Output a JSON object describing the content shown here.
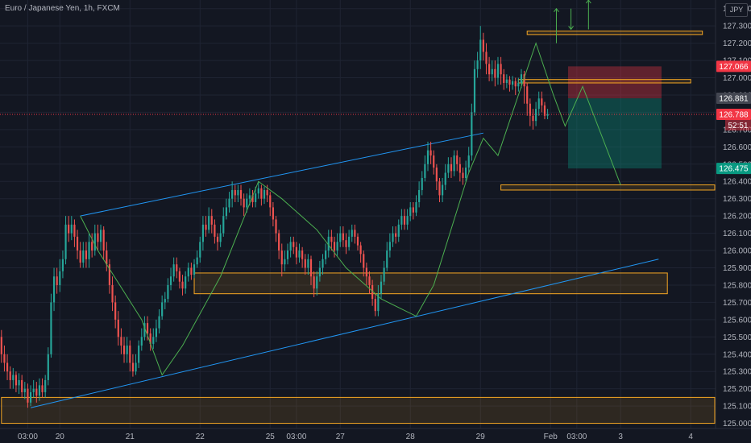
{
  "header": {
    "title": "Euro / Japanese Yen, 1h, FXCM",
    "currency": "JPY"
  },
  "colors": {
    "background": "#131722",
    "grid": "#1f2433",
    "up": "#26a69a",
    "down": "#ef5350",
    "channel": "#2196f3",
    "zone": "#f5a623",
    "zigzag": "#4caf50",
    "stop_zone": "#f23645",
    "target_zone": "#089981"
  },
  "chart_data": {
    "type": "candlestick",
    "title": "Euro / Japanese Yen, 1h, FXCM",
    "ylim": [
      124.97,
      127.45
    ],
    "y_ticks": [
      125.0,
      125.1,
      125.2,
      125.3,
      125.4,
      125.5,
      125.6,
      125.7,
      125.8,
      125.9,
      126.0,
      126.1,
      126.2,
      126.3,
      126.4,
      126.5,
      126.6,
      126.7,
      126.8,
      126.9,
      127.0,
      127.1,
      127.2,
      127.3,
      127.4
    ],
    "y_tick_labels": [
      "125.000",
      "125.100",
      "125.200",
      "125.300",
      "125.400",
      "125.500",
      "125.600",
      "125.700",
      "125.800",
      "125.900",
      "126.000",
      "126.100",
      "126.200",
      "126.300",
      "126.400",
      "126.500",
      "126.600",
      "126.700",
      "126.800",
      "126.900",
      "127.000",
      "127.100",
      "127.200",
      "127.300",
      "127.400"
    ],
    "x_ticks": [
      {
        "label": "03:00",
        "bar": 9
      },
      {
        "label": "20",
        "bar": 20
      },
      {
        "label": "21",
        "bar": 44
      },
      {
        "label": "22",
        "bar": 68
      },
      {
        "label": "25",
        "bar": 92
      },
      {
        "label": "03:00",
        "bar": 101
      },
      {
        "label": "27",
        "bar": 116
      },
      {
        "label": "28",
        "bar": 140
      },
      {
        "label": "29",
        "bar": 164
      },
      {
        "label": "Feb",
        "bar": 188
      },
      {
        "label": "03:00",
        "bar": 197
      },
      {
        "label": "3",
        "bar": 212
      },
      {
        "label": "4",
        "bar": 236
      }
    ],
    "bar_count": 245,
    "candles": [
      [
        125.5,
        125.4,
        125.54,
        125.35
      ],
      [
        125.4,
        125.35,
        125.45,
        125.3
      ],
      [
        125.35,
        125.3,
        125.4,
        125.25
      ],
      [
        125.3,
        125.25,
        125.33,
        125.2
      ],
      [
        125.25,
        125.28,
        125.32,
        125.2
      ],
      [
        125.28,
        125.22,
        125.3,
        125.18
      ],
      [
        125.22,
        125.25,
        125.29,
        125.17
      ],
      [
        125.25,
        125.18,
        125.28,
        125.15
      ],
      [
        125.18,
        125.2,
        125.24,
        125.14
      ],
      [
        125.2,
        125.12,
        125.23,
        125.09
      ],
      [
        125.12,
        125.18,
        125.22,
        125.1
      ],
      [
        125.18,
        125.2,
        125.25,
        125.15
      ],
      [
        125.2,
        125.16,
        125.24,
        125.12
      ],
      [
        125.16,
        125.22,
        125.26,
        125.13
      ],
      [
        125.22,
        125.18,
        125.26,
        125.15
      ],
      [
        125.18,
        125.25,
        125.28,
        125.15
      ],
      [
        125.25,
        125.4,
        125.44,
        125.22
      ],
      [
        125.4,
        125.7,
        125.75,
        125.38
      ],
      [
        125.7,
        125.85,
        125.9,
        125.65
      ],
      [
        125.85,
        125.8,
        125.9,
        125.75
      ],
      [
        125.8,
        125.88,
        125.95,
        125.76
      ],
      [
        125.88,
        125.95,
        126.0,
        125.84
      ],
      [
        125.95,
        126.15,
        126.2,
        125.92
      ],
      [
        126.15,
        126.1,
        126.2,
        126.05
      ],
      [
        126.1,
        126.15,
        126.2,
        126.06
      ],
      [
        126.15,
        126.08,
        126.18,
        126.02
      ],
      [
        126.08,
        126.0,
        126.12,
        125.95
      ],
      [
        126.0,
        125.93,
        126.05,
        125.9
      ],
      [
        125.93,
        126.0,
        126.05,
        125.9
      ],
      [
        126.0,
        125.95,
        126.05,
        125.9
      ],
      [
        125.95,
        126.05,
        126.1,
        125.9
      ],
      [
        126.05,
        126.0,
        126.1,
        125.96
      ],
      [
        126.0,
        126.1,
        126.15,
        125.97
      ],
      [
        126.1,
        126.05,
        126.15,
        126.0
      ],
      [
        126.05,
        126.12,
        126.15,
        126.0
      ],
      [
        126.12,
        126.0,
        126.14,
        125.95
      ],
      [
        126.0,
        125.92,
        126.05,
        125.88
      ],
      [
        125.92,
        125.8,
        125.95,
        125.75
      ],
      [
        125.8,
        125.7,
        125.85,
        125.65
      ],
      [
        125.7,
        125.6,
        125.74,
        125.55
      ],
      [
        125.6,
        125.5,
        125.65,
        125.45
      ],
      [
        125.5,
        125.45,
        125.55,
        125.4
      ],
      [
        125.45,
        125.4,
        125.5,
        125.35
      ],
      [
        125.4,
        125.45,
        125.5,
        125.35
      ],
      [
        125.45,
        125.35,
        125.48,
        125.3
      ],
      [
        125.35,
        125.3,
        125.4,
        125.27
      ],
      [
        125.3,
        125.35,
        125.4,
        125.28
      ],
      [
        125.35,
        125.45,
        125.48,
        125.32
      ],
      [
        125.45,
        125.5,
        125.55,
        125.42
      ],
      [
        125.5,
        125.58,
        125.62,
        125.48
      ],
      [
        125.58,
        125.52,
        125.62,
        125.48
      ],
      [
        125.52,
        125.46,
        125.55,
        125.42
      ],
      [
        125.46,
        125.5,
        125.55,
        125.43
      ],
      [
        125.5,
        125.55,
        125.6,
        125.47
      ],
      [
        125.55,
        125.62,
        125.66,
        125.52
      ],
      [
        125.62,
        125.7,
        125.74,
        125.6
      ],
      [
        125.7,
        125.72,
        125.76,
        125.66
      ],
      [
        125.72,
        125.8,
        125.84,
        125.7
      ],
      [
        125.8,
        125.85,
        125.9,
        125.77
      ],
      [
        125.85,
        125.92,
        125.96,
        125.82
      ],
      [
        125.92,
        125.88,
        125.96,
        125.84
      ],
      [
        125.88,
        125.82,
        125.9,
        125.78
      ],
      [
        125.82,
        125.78,
        125.86,
        125.74
      ],
      [
        125.78,
        125.85,
        125.88,
        125.75
      ],
      [
        125.85,
        125.9,
        125.93,
        125.82
      ],
      [
        125.9,
        125.86,
        125.93,
        125.83
      ],
      [
        125.86,
        125.92,
        125.95,
        125.84
      ],
      [
        125.92,
        125.96,
        126.0,
        125.9
      ],
      [
        125.96,
        126.05,
        126.08,
        125.93
      ],
      [
        126.05,
        126.15,
        126.2,
        126.0
      ],
      [
        126.15,
        126.12,
        126.2,
        126.08
      ],
      [
        126.12,
        126.2,
        126.25,
        126.1
      ],
      [
        126.2,
        126.15,
        126.24,
        126.1
      ],
      [
        126.15,
        126.08,
        126.18,
        126.04
      ],
      [
        126.08,
        126.05,
        126.1,
        126.0
      ],
      [
        126.05,
        126.1,
        126.15,
        126.02
      ],
      [
        126.1,
        126.2,
        126.25,
        126.08
      ],
      [
        126.2,
        126.25,
        126.3,
        126.18
      ],
      [
        126.25,
        126.3,
        126.34,
        126.22
      ],
      [
        126.3,
        126.35,
        126.4,
        126.25
      ],
      [
        126.35,
        126.32,
        126.38,
        126.28
      ],
      [
        126.32,
        126.35,
        126.38,
        126.28
      ],
      [
        126.35,
        126.3,
        126.38,
        126.26
      ],
      [
        126.3,
        126.25,
        126.33,
        126.2
      ],
      [
        126.25,
        126.3,
        126.33,
        126.22
      ],
      [
        126.3,
        126.32,
        126.36,
        126.26
      ],
      [
        126.32,
        126.28,
        126.35,
        126.25
      ],
      [
        126.28,
        126.33,
        126.37,
        126.25
      ],
      [
        126.33,
        126.36,
        126.4,
        126.3
      ],
      [
        126.36,
        126.3,
        126.38,
        126.26
      ],
      [
        126.3,
        126.35,
        126.37,
        126.27
      ],
      [
        126.35,
        126.32,
        126.38,
        126.28
      ],
      [
        126.32,
        126.25,
        126.34,
        126.2
      ],
      [
        126.25,
        126.18,
        126.28,
        126.14
      ],
      [
        126.18,
        126.1,
        126.2,
        126.05
      ],
      [
        126.1,
        126.0,
        126.12,
        125.95
      ],
      [
        126.0,
        125.92,
        126.04,
        125.85
      ],
      [
        125.92,
        125.95,
        126.0,
        125.88
      ],
      [
        125.95,
        126.0,
        126.04,
        125.92
      ],
      [
        126.0,
        126.05,
        126.08,
        125.96
      ],
      [
        126.05,
        126.02,
        126.08,
        125.98
      ],
      [
        126.02,
        125.96,
        126.05,
        125.92
      ],
      [
        125.96,
        126.0,
        126.04,
        125.93
      ],
      [
        126.0,
        125.95,
        126.02,
        125.9
      ],
      [
        125.95,
        125.9,
        125.98,
        125.86
      ],
      [
        125.9,
        125.95,
        125.98,
        125.86
      ],
      [
        125.95,
        125.85,
        125.97,
        125.8
      ],
      [
        125.85,
        125.78,
        125.88,
        125.73
      ],
      [
        125.78,
        125.85,
        125.88,
        125.74
      ],
      [
        125.85,
        125.9,
        125.94,
        125.82
      ],
      [
        125.9,
        125.95,
        125.98,
        125.86
      ],
      [
        125.95,
        126.0,
        126.04,
        125.92
      ],
      [
        126.0,
        126.08,
        126.12,
        125.96
      ],
      [
        126.08,
        126.05,
        126.12,
        126.0
      ],
      [
        126.05,
        126.0,
        126.08,
        125.96
      ],
      [
        126.0,
        126.05,
        126.1,
        125.97
      ],
      [
        126.05,
        126.1,
        126.14,
        126.02
      ],
      [
        126.1,
        126.06,
        126.14,
        126.02
      ],
      [
        126.06,
        126.02,
        126.1,
        125.98
      ],
      [
        126.02,
        126.08,
        126.12,
        126.0
      ],
      [
        126.08,
        126.12,
        126.15,
        126.05
      ],
      [
        126.12,
        126.08,
        126.15,
        126.04
      ],
      [
        126.08,
        126.03,
        126.1,
        126.0
      ],
      [
        126.03,
        125.98,
        126.05,
        125.93
      ],
      [
        125.98,
        125.9,
        126.0,
        125.85
      ],
      [
        125.9,
        125.85,
        125.93,
        125.8
      ],
      [
        125.85,
        125.8,
        125.88,
        125.75
      ],
      [
        125.8,
        125.72,
        125.83,
        125.68
      ],
      [
        125.72,
        125.65,
        125.75,
        125.62
      ],
      [
        125.65,
        125.75,
        125.8,
        125.62
      ],
      [
        125.75,
        125.82,
        125.86,
        125.72
      ],
      [
        125.82,
        125.9,
        125.94,
        125.8
      ],
      [
        125.9,
        126.0,
        126.05,
        125.88
      ],
      [
        126.0,
        126.05,
        126.1,
        125.96
      ],
      [
        126.05,
        126.1,
        126.14,
        126.02
      ],
      [
        126.1,
        126.08,
        126.14,
        126.04
      ],
      [
        126.08,
        126.15,
        126.18,
        126.05
      ],
      [
        126.15,
        126.2,
        126.24,
        126.12
      ],
      [
        126.2,
        126.15,
        126.24,
        126.12
      ],
      [
        126.15,
        126.2,
        126.24,
        126.12
      ],
      [
        126.2,
        126.25,
        126.28,
        126.17
      ],
      [
        126.25,
        126.22,
        126.28,
        126.18
      ],
      [
        126.22,
        126.28,
        126.32,
        126.2
      ],
      [
        126.28,
        126.35,
        126.4,
        126.25
      ],
      [
        126.35,
        126.42,
        126.46,
        126.32
      ],
      [
        126.42,
        126.5,
        126.55,
        126.4
      ],
      [
        126.5,
        126.58,
        126.63,
        126.46
      ],
      [
        126.58,
        126.55,
        126.63,
        126.5
      ],
      [
        126.55,
        126.48,
        126.58,
        126.44
      ],
      [
        126.48,
        126.4,
        126.5,
        126.35
      ],
      [
        126.4,
        126.32,
        126.42,
        126.28
      ],
      [
        126.32,
        126.38,
        126.42,
        126.28
      ],
      [
        126.38,
        126.45,
        126.5,
        126.35
      ],
      [
        126.45,
        126.5,
        126.54,
        126.42
      ],
      [
        126.5,
        126.46,
        126.54,
        126.42
      ],
      [
        126.46,
        126.55,
        126.58,
        126.43
      ],
      [
        126.55,
        126.5,
        126.58,
        126.46
      ],
      [
        126.5,
        126.45,
        126.54,
        126.4
      ],
      [
        126.45,
        126.42,
        126.48,
        126.38
      ],
      [
        126.42,
        126.48,
        126.52,
        126.4
      ],
      [
        126.48,
        126.55,
        126.6,
        126.45
      ],
      [
        126.55,
        126.8,
        126.85,
        126.52
      ],
      [
        126.8,
        127.05,
        127.1,
        126.78
      ],
      [
        127.05,
        127.1,
        127.15,
        127.0
      ],
      [
        127.1,
        127.22,
        127.3,
        127.05
      ],
      [
        127.22,
        127.15,
        127.26,
        127.1
      ],
      [
        127.15,
        127.08,
        127.2,
        127.02
      ],
      [
        127.08,
        127.02,
        127.12,
        126.98
      ],
      [
        127.02,
        127.05,
        127.1,
        126.98
      ],
      [
        127.05,
        127.0,
        127.1,
        126.95
      ],
      [
        127.0,
        127.08,
        127.12,
        126.96
      ],
      [
        127.08,
        127.02,
        127.12,
        126.96
      ],
      [
        127.02,
        126.97,
        127.05,
        126.93
      ],
      [
        126.97,
        126.99,
        127.02,
        126.94
      ],
      [
        126.99,
        126.96,
        127.01,
        126.92
      ],
      [
        126.96,
        126.98,
        127.01,
        126.93
      ],
      [
        126.98,
        126.95,
        127.0,
        126.9
      ],
      [
        126.95,
        126.97,
        127.0,
        126.92
      ],
      [
        126.97,
        127.02,
        127.05,
        126.94
      ],
      [
        127.02,
        126.95,
        127.04,
        126.85
      ],
      [
        126.95,
        126.85,
        126.97,
        126.78
      ],
      [
        126.85,
        126.78,
        126.88,
        126.72
      ],
      [
        126.78,
        126.75,
        126.82,
        126.7
      ],
      [
        126.75,
        126.82,
        126.86,
        126.72
      ],
      [
        126.82,
        126.88,
        126.92,
        126.78
      ],
      [
        126.88,
        126.84,
        126.92,
        126.8
      ],
      [
        126.84,
        126.78,
        126.86,
        126.76
      ],
      [
        126.78,
        126.79,
        126.82,
        126.76
      ]
    ],
    "channel": [
      {
        "from": [
          27,
          126.2
        ],
        "to": [
          165,
          126.68
        ]
      },
      {
        "from": [
          10,
          125.09
        ],
        "to": [
          225,
          125.95
        ]
      }
    ],
    "zones": [
      {
        "from": [
          66,
          125.87
        ],
        "to": [
          228,
          125.75
        ]
      },
      {
        "from": [
          0,
          125.15
        ],
        "to": [
          245,
          125.0
        ]
      },
      {
        "from": [
          180,
          127.27
        ],
        "to": [
          240,
          127.25
        ]
      },
      {
        "from": [
          177,
          126.99
        ],
        "to": [
          236,
          126.97
        ]
      },
      {
        "from": [
          171,
          126.38
        ],
        "to": [
          245,
          126.35
        ]
      }
    ],
    "zigzag": [
      [
        27,
        126.2
      ],
      [
        33,
        126.0
      ],
      [
        48,
        125.6
      ],
      [
        55,
        125.28
      ],
      [
        62,
        125.45
      ],
      [
        75,
        125.85
      ],
      [
        88,
        126.4
      ],
      [
        96,
        126.3
      ],
      [
        108,
        126.12
      ],
      [
        118,
        125.9
      ],
      [
        130,
        125.72
      ],
      [
        142,
        125.62
      ],
      [
        148,
        125.8
      ],
      [
        160,
        126.45
      ],
      [
        165,
        126.65
      ],
      [
        170,
        126.55
      ],
      [
        176,
        126.85
      ],
      [
        183,
        127.2
      ],
      [
        189,
        126.9
      ],
      [
        193,
        126.72
      ],
      [
        199,
        126.95
      ],
      [
        212,
        126.38
      ]
    ],
    "risk_reward": {
      "stop": 127.066,
      "entry": 126.881,
      "target": 126.475,
      "start_bar": 194,
      "end_bar": 226
    },
    "arrows": [
      {
        "bar": 190,
        "from": 127.2,
        "to": 127.4
      },
      {
        "bar": 195,
        "from": 127.4,
        "to": 127.28
      },
      {
        "bar": 201,
        "from": 127.28,
        "to": 127.45
      }
    ],
    "price_labels": [
      {
        "value": 127.066,
        "text": "127.066",
        "color": "#f23645"
      },
      {
        "value": 126.881,
        "text": "126.881",
        "color": "#434651"
      },
      {
        "value": 126.788,
        "text": "126.788",
        "color": "#f23645",
        "sub": "52:51"
      },
      {
        "value": 126.475,
        "text": "126.475",
        "color": "#089981"
      }
    ]
  }
}
